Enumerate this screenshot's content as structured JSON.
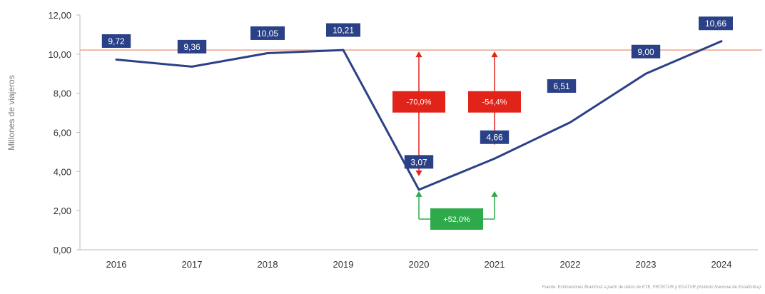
{
  "chart_data": {
    "type": "line",
    "title": "",
    "xlabel": "",
    "ylabel": "Millones de viajeros",
    "categories": [
      "2016",
      "2017",
      "2018",
      "2019",
      "2020",
      "2021",
      "2022",
      "2023",
      "2024"
    ],
    "values": [
      9.72,
      9.36,
      10.05,
      10.21,
      3.07,
      4.66,
      6.51,
      9.0,
      10.66
    ],
    "data_labels": [
      "9,72",
      "9,36",
      "10,05",
      "10,21",
      "3,07",
      "4,66",
      "6,51",
      "9,00",
      "10,66"
    ],
    "ylim": [
      0,
      12
    ],
    "yticks": [
      0,
      2,
      4,
      6,
      8,
      10,
      12
    ],
    "ytick_labels": [
      "0,00",
      "2,00",
      "4,00",
      "6,00",
      "8,00",
      "10,00",
      "12,00"
    ],
    "reference_line": {
      "value": 10.21
    },
    "annotations": [
      {
        "text": "-70,0%",
        "from_category": "2020",
        "to_value": 3.07,
        "color": "#e2231a"
      },
      {
        "text": "-54,4%",
        "from_category": "2021",
        "to_value": 4.66,
        "color": "#e2231a"
      },
      {
        "text": "+52,0%",
        "from_category": "2020",
        "to_category": "2021",
        "color": "#2eaa4a"
      }
    ],
    "source": "Fuente: Estimaciones Braintrust a partir de datos de ETE, FRONTUR y EGATUR (Instituto Nacional de Estadística)",
    "grid": false,
    "legend": "none",
    "colors": {
      "line": "#2b4187",
      "label_box": "#2b4187",
      "reference_line": "#e9a28c",
      "negative": "#e2231a",
      "positive": "#2eaa4a",
      "axis": "#bbbbbb"
    }
  }
}
